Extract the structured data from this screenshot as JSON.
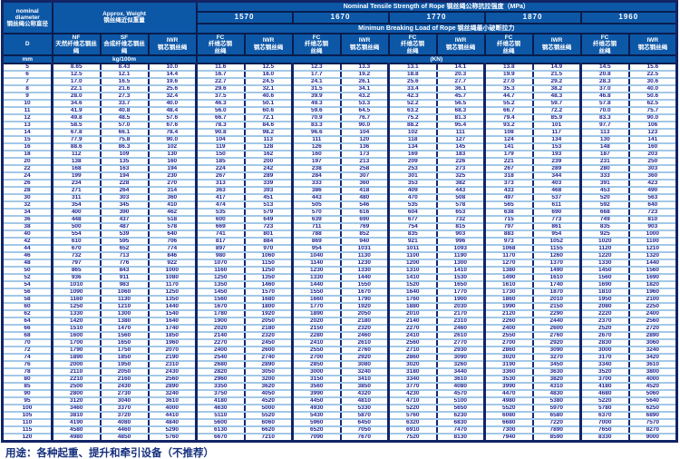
{
  "table": {
    "header": {
      "nominal_diameter_en": "nominal diameter",
      "nominal_diameter_zh": "钢丝绳公称直径",
      "approx_weight_en": "Approx. Weight",
      "approx_weight_zh": "钢丝绳近似重量",
      "tensile_strength_title": "Nominal Tensile Strength of Rope 钢丝绳公称抗拉强度（MPa）",
      "breaking_load_title": "Minimun Breaking Load of Rope 钢丝绳最小破断拉力",
      "strengths": [
        "1570",
        "1670",
        "1770",
        "1870",
        "1960"
      ],
      "d_label": "D",
      "col_nf_code": "NF",
      "col_nf_zh": "天然纤维芯钢丝绳",
      "col_sf_code": "SF",
      "col_sf_zh": "合成纤维芯钢丝绳",
      "col_iwr_code": "IWR",
      "col_iwr_zh": "钢芯钢丝绳",
      "col_fc_code": "FC",
      "col_fc_zh": "纤维芯钢丝绳",
      "unit_mm": "mm",
      "unit_kg": "kg/100m",
      "unit_kn": "(KN)"
    },
    "rows": [
      [
        "5",
        "8.65",
        "8.43",
        "10.0",
        "11.6",
        "12.5",
        "12.3",
        "13.3",
        "13.1",
        "14.1",
        "13.8",
        "14.9",
        "14.5",
        "15.6"
      ],
      [
        "6",
        "12.5",
        "12.1",
        "14.4",
        "16.7",
        "18.0",
        "17.7",
        "19.2",
        "18.8",
        "20.3",
        "19.9",
        "21.5",
        "20.8",
        "22.5"
      ],
      [
        "7",
        "17.0",
        "16.5",
        "19.6",
        "22.7",
        "24.5",
        "24.1",
        "26.1",
        "25.6",
        "27.7",
        "27.0",
        "29.2",
        "28.3",
        "30.6"
      ],
      [
        "8",
        "22.1",
        "21.6",
        "25.6",
        "29.6",
        "32.1",
        "31.5",
        "34.1",
        "33.4",
        "36.1",
        "35.3",
        "38.2",
        "37.0",
        "40.0"
      ],
      [
        "9",
        "28.0",
        "27.3",
        "32.4",
        "37.5",
        "40.6",
        "39.9",
        "43.2",
        "42.3",
        "45.7",
        "44.7",
        "48.3",
        "46.8",
        "50.6"
      ],
      [
        "10",
        "34.6",
        "33.7",
        "40.0",
        "46.3",
        "50.1",
        "49.3",
        "53.3",
        "52.2",
        "56.5",
        "55.2",
        "59.7",
        "57.8",
        "62.5"
      ],
      [
        "11",
        "41.9",
        "40.8",
        "48.4",
        "56.0",
        "60.6",
        "59.6",
        "64.5",
        "63.2",
        "68.3",
        "66.7",
        "72.2",
        "70.0",
        "75.7"
      ],
      [
        "12",
        "49.8",
        "48.5",
        "57.6",
        "66.7",
        "72.1",
        "70.9",
        "76.7",
        "75.2",
        "81.3",
        "79.4",
        "85.9",
        "83.3",
        "90.0"
      ],
      [
        "13",
        "58.5",
        "57.0",
        "67.6",
        "78.3",
        "84.6",
        "83.3",
        "90.0",
        "88.2",
        "95.4",
        "93.2",
        "101",
        "97.7",
        "106"
      ],
      [
        "14",
        "67.8",
        "66.1",
        "78.4",
        "90.8",
        "98.2",
        "96.6",
        "104",
        "102",
        "111",
        "108",
        "117",
        "113",
        "123"
      ],
      [
        "15",
        "77.9",
        "75.8",
        "90.0",
        "104",
        "113",
        "111",
        "120",
        "118",
        "127",
        "124",
        "134",
        "130",
        "141"
      ],
      [
        "16",
        "88.6",
        "86.3",
        "102",
        "119",
        "128",
        "126",
        "136",
        "134",
        "145",
        "141",
        "153",
        "148",
        "160"
      ],
      [
        "18",
        "112",
        "109",
        "130",
        "150",
        "162",
        "160",
        "173",
        "169",
        "183",
        "179",
        "193",
        "187",
        "203"
      ],
      [
        "20",
        "138",
        "135",
        "160",
        "185",
        "200",
        "197",
        "213",
        "209",
        "226",
        "221",
        "239",
        "231",
        "250"
      ],
      [
        "22",
        "168",
        "163",
        "194",
        "224",
        "242",
        "238",
        "258",
        "253",
        "273",
        "267",
        "289",
        "280",
        "303"
      ],
      [
        "24",
        "199",
        "194",
        "230",
        "267",
        "289",
        "284",
        "307",
        "301",
        "325",
        "318",
        "344",
        "333",
        "360"
      ],
      [
        "26",
        "234",
        "228",
        "270",
        "313",
        "339",
        "333",
        "360",
        "353",
        "382",
        "373",
        "403",
        "391",
        "423"
      ],
      [
        "28",
        "271",
        "264",
        "314",
        "363",
        "393",
        "386",
        "418",
        "409",
        "443",
        "433",
        "468",
        "453",
        "490"
      ],
      [
        "30",
        "311",
        "303",
        "360",
        "417",
        "451",
        "443",
        "480",
        "470",
        "508",
        "497",
        "537",
        "520",
        "563"
      ],
      [
        "32",
        "354",
        "345",
        "410",
        "474",
        "513",
        "505",
        "546",
        "535",
        "578",
        "565",
        "611",
        "592",
        "640"
      ],
      [
        "34",
        "400",
        "390",
        "462",
        "535",
        "579",
        "570",
        "616",
        "604",
        "653",
        "638",
        "690",
        "668",
        "723"
      ],
      [
        "36",
        "448",
        "437",
        "518",
        "600",
        "649",
        "639",
        "690",
        "677",
        "732",
        "715",
        "773",
        "749",
        "810"
      ],
      [
        "38",
        "500",
        "487",
        "578",
        "669",
        "723",
        "711",
        "769",
        "754",
        "815",
        "797",
        "861",
        "835",
        "903"
      ],
      [
        "40",
        "554",
        "539",
        "640",
        "741",
        "801",
        "788",
        "852",
        "835",
        "903",
        "883",
        "954",
        "925",
        "1000"
      ],
      [
        "42",
        "610",
        "595",
        "706",
        "817",
        "884",
        "869",
        "940",
        "921",
        "996",
        "973",
        "1052",
        "1020",
        "1100"
      ],
      [
        "44",
        "670",
        "652",
        "774",
        "897",
        "970",
        "954",
        "1031",
        "1011",
        "1093",
        "1068",
        "1155",
        "1120",
        "1210"
      ],
      [
        "46",
        "732",
        "713",
        "846",
        "980",
        "1060",
        "1040",
        "1130",
        "1100",
        "1190",
        "1170",
        "1260",
        "1220",
        "1320"
      ],
      [
        "48",
        "797",
        "776",
        "922",
        "1070",
        "1150",
        "1140",
        "1230",
        "1200",
        "1300",
        "1270",
        "1370",
        "1330",
        "1440"
      ],
      [
        "50",
        "865",
        "843",
        "1000",
        "1160",
        "1250",
        "1230",
        "1330",
        "1310",
        "1410",
        "1380",
        "1490",
        "1450",
        "1560"
      ],
      [
        "52",
        "936",
        "911",
        "1080",
        "1250",
        "1350",
        "1330",
        "1440",
        "1410",
        "1530",
        "1490",
        "1610",
        "1560",
        "1690"
      ],
      [
        "54",
        "1010",
        "983",
        "1170",
        "1350",
        "1460",
        "1440",
        "1550",
        "1520",
        "1650",
        "1610",
        "1740",
        "1690",
        "1820"
      ],
      [
        "56",
        "1090",
        "1060",
        "1250",
        "1450",
        "1570",
        "1550",
        "1670",
        "1640",
        "1770",
        "1730",
        "1870",
        "1810",
        "1960"
      ],
      [
        "58",
        "1160",
        "1130",
        "1350",
        "1560",
        "1680",
        "1660",
        "1790",
        "1760",
        "1900",
        "1860",
        "2010",
        "1950",
        "2100"
      ],
      [
        "60",
        "1250",
        "1210",
        "1440",
        "1670",
        "1800",
        "1770",
        "1920",
        "1880",
        "2030",
        "1990",
        "2150",
        "2080",
        "2250"
      ],
      [
        "62",
        "1330",
        "1300",
        "1540",
        "1780",
        "1920",
        "1890",
        "2050",
        "2010",
        "2170",
        "2120",
        "2290",
        "2220",
        "2400"
      ],
      [
        "64",
        "1420",
        "1380",
        "1640",
        "1900",
        "2050",
        "2020",
        "2180",
        "2140",
        "2310",
        "2260",
        "2440",
        "2370",
        "2560"
      ],
      [
        "66",
        "1510",
        "1470",
        "1740",
        "2020",
        "2180",
        "2150",
        "2320",
        "2270",
        "2460",
        "2400",
        "2600",
        "2520",
        "2720"
      ],
      [
        "68",
        "1600",
        "1560",
        "1850",
        "2140",
        "2320",
        "2280",
        "2460",
        "2410",
        "2610",
        "2550",
        "2760",
        "2670",
        "2890"
      ],
      [
        "70",
        "1700",
        "1650",
        "1960",
        "2270",
        "2450",
        "2410",
        "2610",
        "2560",
        "2770",
        "2700",
        "2920",
        "2830",
        "3060"
      ],
      [
        "72",
        "1790",
        "1750",
        "2070",
        "2400",
        "2600",
        "2550",
        "2760",
        "2710",
        "2930",
        "2860",
        "3090",
        "3000",
        "3240"
      ],
      [
        "74",
        "1890",
        "1850",
        "2190",
        "2540",
        "2740",
        "2700",
        "2920",
        "2860",
        "3090",
        "3020",
        "3270",
        "3170",
        "3420"
      ],
      [
        "76",
        "2000",
        "1950",
        "2310",
        "2680",
        "2890",
        "2850",
        "3080",
        "3020",
        "3260",
        "3190",
        "3450",
        "3340",
        "3610"
      ],
      [
        "78",
        "2110",
        "2050",
        "2430",
        "2820",
        "3050",
        "3000",
        "3240",
        "3180",
        "3440",
        "3360",
        "3630",
        "3520",
        "3800"
      ],
      [
        "80",
        "2210",
        "2160",
        "2560",
        "2960",
        "3200",
        "3150",
        "3410",
        "3340",
        "3610",
        "3530",
        "3820",
        "3700",
        "4000"
      ],
      [
        "85",
        "2500",
        "2430",
        "2890",
        "3350",
        "3620",
        "3560",
        "3850",
        "3770",
        "4080",
        "3990",
        "4310",
        "4180",
        "4520"
      ],
      [
        "90",
        "2800",
        "2730",
        "3240",
        "3750",
        "4050",
        "3990",
        "4320",
        "4230",
        "4570",
        "4470",
        "4830",
        "4680",
        "5060"
      ],
      [
        "95",
        "3120",
        "3040",
        "3610",
        "4180",
        "4520",
        "4450",
        "4810",
        "4710",
        "5100",
        "4980",
        "5380",
        "5220",
        "5640"
      ],
      [
        "100",
        "3460",
        "3370",
        "4000",
        "4630",
        "5000",
        "4930",
        "5330",
        "5220",
        "5650",
        "5520",
        "5970",
        "5780",
        "6250"
      ],
      [
        "105",
        "3810",
        "3720",
        "4410",
        "5110",
        "5520",
        "5430",
        "5870",
        "5760",
        "6230",
        "6080",
        "6580",
        "6370",
        "6890"
      ],
      [
        "110",
        "4190",
        "4080",
        "4840",
        "5600",
        "6060",
        "5960",
        "6450",
        "6320",
        "6830",
        "6680",
        "7220",
        "7000",
        "7570"
      ],
      [
        "115",
        "4580",
        "4460",
        "5290",
        "6130",
        "6620",
        "6520",
        "7050",
        "6910",
        "7470",
        "7300",
        "7890",
        "7650",
        "8270"
      ],
      [
        "120",
        "4980",
        "4850",
        "5760",
        "6670",
        "7210",
        "7090",
        "7670",
        "7520",
        "8130",
        "7940",
        "8590",
        "8330",
        "9000"
      ]
    ]
  },
  "footer": {
    "usage": "用途：各种起重、提升和牵引设备（不推荐）"
  }
}
